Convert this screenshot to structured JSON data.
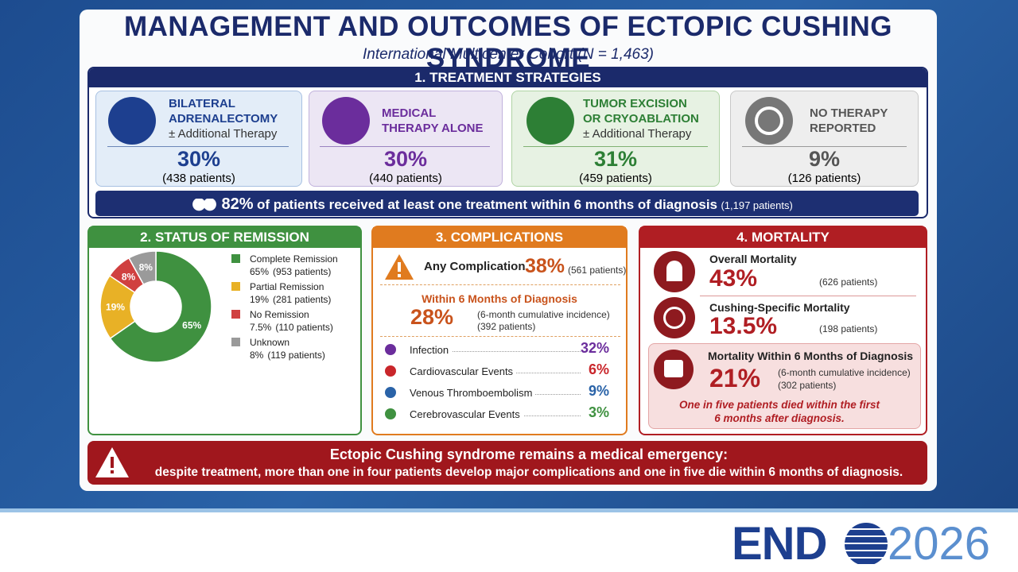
{
  "header": {
    "title": "MANAGEMENT AND OUTCOMES OF ECTOPIC CUSHING SYNDROME",
    "subtitle": "International Multicenter Cohort (N = 1,463)"
  },
  "treatment": {
    "heading": "1. TREATMENT STRATEGIES",
    "cards": [
      {
        "title": "BILATERAL ADRENALECTOMY",
        "note": "± Additional Therapy",
        "percent": "30%",
        "patients": "(438 patients)"
      },
      {
        "title": "MEDICAL THERAPY ALONE",
        "percent": "30%",
        "patients": "(440 patients)"
      },
      {
        "title": "TUMOR EXCISION OR CRYOABLATION",
        "note": "± Additional Therapy",
        "percent": "31%",
        "patients": "(459 patients)"
      },
      {
        "title": "NO THERAPY REPORTED",
        "percent": "9%",
        "patients": "(126 patients)"
      }
    ],
    "summary": {
      "percent": "82%",
      "text": "of patients received at least one treatment within 6 months of diagnosis",
      "patients": "(1,197 patients)"
    }
  },
  "remission": {
    "heading": "2. STATUS OF REMISSION",
    "items": [
      {
        "name": "Complete Remission",
        "value": 65,
        "value_label": "65%",
        "legend_value": "65%",
        "patients": "(953 patients)",
        "color": "#3f9140"
      },
      {
        "name": "Partial Remission",
        "value": 19,
        "value_label": "19%",
        "legend_value": "19%",
        "patients": "(281 patients)",
        "color": "#e8b126"
      },
      {
        "name": "No Remission",
        "value": 7.5,
        "value_label": "8%",
        "legend_value": "7.5%",
        "patients": "(110 patients)",
        "color": "#d04040"
      },
      {
        "name": "Unknown",
        "value": 8,
        "value_label": "8%",
        "legend_value": "8%",
        "patients": "(119 patients)",
        "color": "#9a9a9a"
      }
    ]
  },
  "complications": {
    "heading": "3. COMPLICATIONS",
    "any": {
      "label": "Any Complication",
      "percent": "38%",
      "patients": "(561 patients)"
    },
    "six_month": {
      "label": "Within 6 Months of Diagnosis",
      "percent": "28%",
      "note": "(6-month cumulative incidence)",
      "patients": "(392 patients)"
    },
    "items": [
      {
        "label": "Infection",
        "percent": "32%"
      },
      {
        "label": "Cardiovascular Events",
        "percent": "6%"
      },
      {
        "label": "Venous Thromboembolism",
        "percent": "9%"
      },
      {
        "label": "Cerebrovascular Events",
        "percent": "3%"
      }
    ]
  },
  "mortality": {
    "heading": "4. MORTALITY",
    "overall": {
      "label": "Overall Mortality",
      "percent": "43%",
      "patients": "(626 patients)"
    },
    "specific": {
      "label": "Cushing-Specific Mortality",
      "percent": "13.5%",
      "patients": "(198 patients)"
    },
    "six_month": {
      "label": "Mortality Within 6 Months of Diagnosis",
      "percent": "21%",
      "note": "(6-month cumulative incidence)",
      "patients": "(302 patients)",
      "message": "One in five patients died within the first 6 months after diagnosis."
    }
  },
  "footer": {
    "line1": "Ectopic Cushing syndrome remains a medical emergency:",
    "line2": "despite treatment, more than one in four patients develop major complications and one in five die within 6 months of diagnosis."
  },
  "logo": {
    "text": "END",
    "year": "2026"
  }
}
